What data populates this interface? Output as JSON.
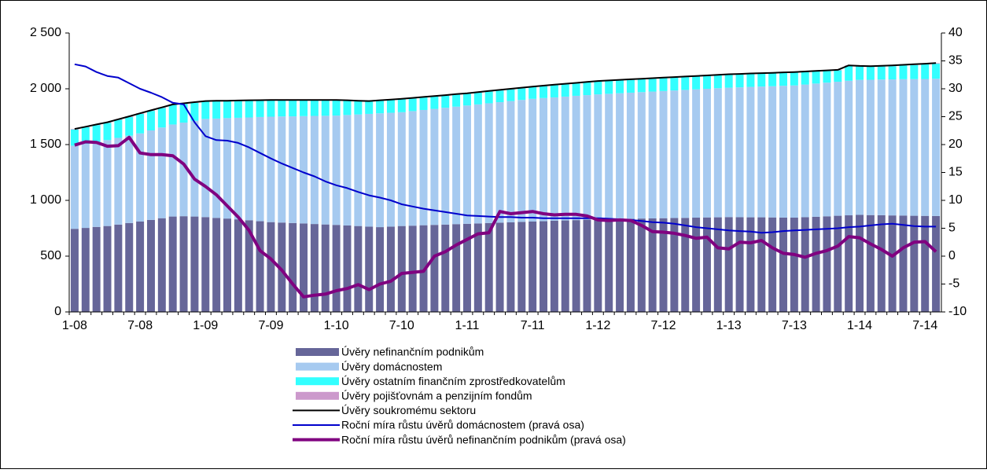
{
  "chart_data": {
    "type": "bar",
    "stacked": true,
    "categories": [
      "1-08",
      null,
      null,
      null,
      null,
      null,
      "7-08",
      null,
      null,
      null,
      null,
      null,
      "1-09",
      null,
      null,
      null,
      null,
      null,
      "7-09",
      null,
      null,
      null,
      null,
      null,
      "1-10",
      null,
      null,
      null,
      null,
      null,
      "7-10",
      null,
      null,
      null,
      null,
      null,
      "1-11",
      null,
      null,
      null,
      null,
      null,
      "7-11",
      null,
      null,
      null,
      null,
      null,
      "1-12",
      null,
      null,
      null,
      null,
      null,
      "7-12",
      null,
      null,
      null,
      null,
      null,
      "1-13",
      null,
      null,
      null,
      null,
      null,
      "7-13",
      null,
      null,
      null,
      null,
      null,
      "1-14",
      null,
      null,
      null,
      null,
      null,
      "7-14",
      null
    ],
    "ylim": [
      0,
      2500
    ],
    "yticks": [
      0,
      500,
      {
        "value": 1000,
        "label": "1 000"
      },
      {
        "value": 1500,
        "label": "1 500"
      },
      {
        "value": 2000,
        "label": "2 000"
      },
      {
        "value": 2500,
        "label": "2 500"
      }
    ],
    "y2lim": [
      -10,
      40
    ],
    "y2ticks": [
      -10,
      -5,
      0,
      5,
      10,
      15,
      20,
      25,
      30,
      35,
      40
    ],
    "series": [
      {
        "name": "Úvěry nefinančním podnikům",
        "type": "bar",
        "color": "#666699",
        "values": [
          745,
          753,
          762,
          770,
          783,
          797,
          810,
          825,
          840,
          855,
          858,
          855,
          850,
          843,
          837,
          830,
          822,
          813,
          805,
          801,
          797,
          793,
          788,
          784,
          780,
          775,
          770,
          765,
          760,
          765,
          770,
          773,
          777,
          780,
          783,
          787,
          790,
          793,
          797,
          800,
          803,
          807,
          810,
          813,
          817,
          820,
          823,
          827,
          830,
          832,
          833,
          835,
          837,
          838,
          840,
          842,
          843,
          845,
          847,
          848,
          850,
          849,
          848,
          848,
          847,
          846,
          845,
          849,
          853,
          857,
          862,
          866,
          870,
          868,
          867,
          865,
          864,
          862,
          861,
          860
        ]
      },
      {
        "name": "Úvěry domácnostem",
        "type": "bar",
        "color": "#a6caf0",
        "values": [
          745,
          754,
          761,
          770,
          777,
          783,
          790,
          802,
          813,
          825,
          839,
          858,
          880,
          890,
          900,
          910,
          921,
          934,
          945,
          951,
          956,
          962,
          969,
          974,
          980,
          990,
          1000,
          1010,
          1020,
          1020,
          1020,
          1027,
          1033,
          1040,
          1047,
          1053,
          1060,
          1067,
          1073,
          1080,
          1087,
          1093,
          1100,
          1104,
          1106,
          1110,
          1114,
          1116,
          1120,
          1123,
          1127,
          1130,
          1133,
          1137,
          1140,
          1143,
          1147,
          1150,
          1153,
          1157,
          1160,
          1164,
          1169,
          1172,
          1176,
          1181,
          1185,
          1189,
          1194,
          1198,
          1201,
          1206,
          1210,
          1213,
          1216,
          1219,
          1222,
          1225,
          1227,
          1230
        ]
      },
      {
        "name": "Úvěry ostatním finančním zprostředkovatelům",
        "type": "bar",
        "color": "#33ffff",
        "values": [
          145,
          148,
          152,
          155,
          162,
          168,
          175,
          175,
          175,
          175,
          168,
          162,
          155,
          154,
          151,
          150,
          149,
          146,
          145,
          143,
          142,
          140,
          138,
          137,
          135,
          127,
          118,
          110,
          112,
          113,
          115,
          113,
          112,
          110,
          108,
          107,
          105,
          105,
          105,
          105,
          105,
          105,
          105,
          106,
          109,
          110,
          111,
          114,
          115,
          115,
          115,
          115,
          115,
          115,
          115,
          115,
          115,
          115,
          115,
          115,
          115,
          115,
          115,
          115,
          115,
          115,
          115,
          112,
          108,
          105,
          102,
          133,
          120,
          117,
          117,
          119,
          123,
          126,
          131,
          135
        ]
      },
      {
        "name": "Úvěry pojišťovnám a penzijním fondům",
        "type": "bar",
        "color": "#cc99cc",
        "values": [
          5,
          5,
          5,
          5,
          5,
          5,
          5,
          5,
          5,
          5,
          5,
          5,
          5,
          5,
          5,
          5,
          5,
          5,
          5,
          5,
          5,
          5,
          5,
          5,
          5,
          5,
          5,
          5,
          5,
          5,
          5,
          5,
          5,
          5,
          5,
          5,
          5,
          5,
          5,
          5,
          5,
          5,
          5,
          5,
          5,
          5,
          5,
          5,
          5,
          5,
          5,
          5,
          5,
          5,
          5,
          5,
          5,
          5,
          5,
          5,
          5,
          5,
          5,
          5,
          5,
          5,
          5,
          5,
          5,
          5,
          5,
          5,
          5,
          5,
          5,
          5,
          5,
          5,
          5,
          5
        ]
      },
      {
        "name": "Úvěry soukromému sektoru",
        "type": "line",
        "color": "#000000",
        "width": 2,
        "values": [
          1640,
          1660,
          1680,
          1700,
          1727,
          1753,
          1780,
          1807,
          1833,
          1860,
          1870,
          1880,
          1890,
          1892,
          1893,
          1895,
          1897,
          1898,
          1900,
          1900,
          1900,
          1900,
          1900,
          1900,
          1900,
          1897,
          1893,
          1890,
          1897,
          1903,
          1910,
          1918,
          1927,
          1935,
          1943,
          1952,
          1960,
          1970,
          1980,
          1990,
          2000,
          2010,
          2020,
          2028,
          2037,
          2045,
          2053,
          2062,
          2070,
          2075,
          2080,
          2085,
          2090,
          2095,
          2100,
          2105,
          2110,
          2115,
          2120,
          2125,
          2130,
          2133,
          2137,
          2140,
          2143,
          2147,
          2150,
          2155,
          2160,
          2165,
          2170,
          2210,
          2205,
          2203,
          2206,
          2210,
          2215,
          2220,
          2225,
          2230
        ]
      },
      {
        "name": "Roční míra růstu úvěrů domácnostem (pravá osa)",
        "type": "line",
        "axis": "y2",
        "color": "#0000cc",
        "width": 2,
        "values": [
          34.4,
          34,
          33,
          32.3,
          32,
          31,
          30,
          29.3,
          28.5,
          27.5,
          27.2,
          24,
          21.5,
          20.8,
          20.7,
          20.3,
          19.5,
          18.5,
          17.5,
          16.6,
          15.8,
          15,
          14.3,
          13.4,
          12.7,
          12.2,
          11.5,
          10.9,
          10.5,
          10,
          9.3,
          8.9,
          8.5,
          8.2,
          7.9,
          7.6,
          7.3,
          7.2,
          7.1,
          7,
          7,
          6.9,
          6.9,
          6.8,
          6.8,
          6.8,
          6.8,
          6.8,
          6.8,
          6.7,
          6.6,
          6.5,
          6.3,
          6.1,
          6,
          5.8,
          5.5,
          5.2,
          5,
          4.8,
          4.6,
          4.5,
          4.4,
          4.2,
          4.3,
          4.5,
          4.6,
          4.7,
          4.8,
          4.9,
          5,
          5.2,
          5.3,
          5.5,
          5.7,
          5.8,
          5.6,
          5.4,
          5.3,
          5.3
        ]
      },
      {
        "name": "Roční míra růstu úvěrů nefinančním podnikům (pravá osa)",
        "type": "line",
        "axis": "y2",
        "color": "#800080",
        "width": 4,
        "values": [
          19.9,
          20.5,
          20.4,
          19.7,
          19.8,
          21.3,
          18.5,
          18.2,
          18.2,
          18,
          16.5,
          13.8,
          12.5,
          11,
          9,
          7,
          4.6,
          1,
          -0.5,
          -2.5,
          -5,
          -7.3,
          -7,
          -6.8,
          -6.2,
          -5.8,
          -5.1,
          -6,
          -5,
          -4.5,
          -3.1,
          -2.9,
          -2.7,
          0,
          0.8,
          2,
          3,
          4,
          4.2,
          8,
          7.6,
          7.8,
          8,
          7.6,
          7.4,
          7.5,
          7.5,
          7.2,
          6.5,
          6.4,
          6.5,
          6.4,
          5.5,
          4.4,
          4.3,
          4.1,
          3.7,
          3.2,
          3.4,
          1.5,
          1.3,
          2.5,
          2.4,
          2.8,
          1.5,
          0.5,
          0.3,
          -0.2,
          0.5,
          1,
          1.8,
          3.5,
          3.3,
          2.2,
          1.2,
          0,
          1.5,
          2.5,
          2.6,
          0.8
        ]
      }
    ]
  }
}
